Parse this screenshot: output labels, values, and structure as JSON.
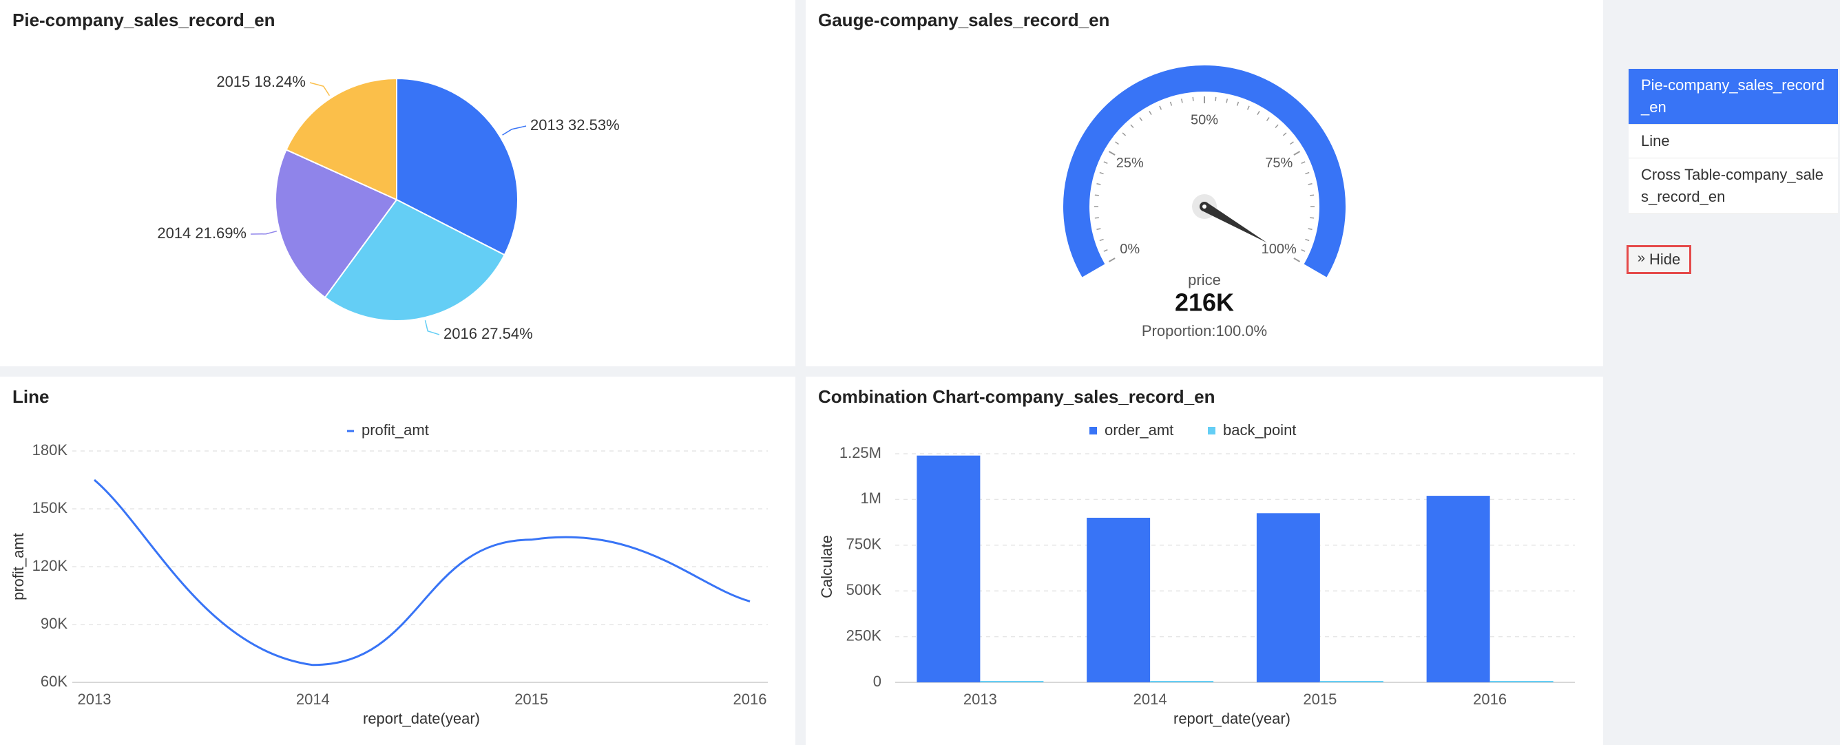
{
  "colors": {
    "pie": [
      "#3874f6",
      "#64cef5",
      "#8f84ea",
      "#fbbf4a"
    ],
    "primary": "#3874f6",
    "secondary": "#64cef5",
    "nav_active_bg": "#3874f6",
    "hide_border": "#e54a4a"
  },
  "panels": {
    "pie_title": "Pie-company_sales_record_en",
    "gauge_title": "Gauge-company_sales_record_en",
    "line_title": "Line",
    "combo_title": "Combination Chart-company_sales_record_en"
  },
  "gauge": {
    "ticks": [
      "0%",
      "25%",
      "50%",
      "75%",
      "100%"
    ],
    "label": "price",
    "value_text": "216K",
    "proportion_text": "Proportion:100.0%",
    "value_fraction": 1.0
  },
  "side_nav": {
    "items": [
      {
        "label": "Pie-company_sales_record_en",
        "active": true
      },
      {
        "label": "Line",
        "active": false
      },
      {
        "label": "Cross Table-company_sales_record_en",
        "active": false
      }
    ],
    "hide_label": "Hide",
    "hide_icon": "double-chevron-right-icon"
  },
  "chart_data": [
    {
      "type": "pie",
      "title": "Pie-company_sales_record_en",
      "slices": [
        {
          "label": "2013",
          "value": 32.53,
          "display": "2013 32.53%"
        },
        {
          "label": "2016",
          "value": 27.54,
          "display": "2016 27.54%"
        },
        {
          "label": "2014",
          "value": 21.69,
          "display": "2014 21.69%"
        },
        {
          "label": "2015",
          "value": 18.24,
          "display": "2015 18.24%"
        }
      ]
    },
    {
      "type": "line",
      "title": "Line",
      "x": [
        "2013",
        "2014",
        "2015",
        "2016"
      ],
      "series": [
        {
          "name": "profit_amt",
          "values": [
            165000,
            69000,
            134000,
            102000
          ]
        }
      ],
      "xlabel": "report_date(year)",
      "ylabel": "profit_amt",
      "ylim": [
        60000,
        180000
      ],
      "yticks": [
        60000,
        90000,
        120000,
        150000,
        180000
      ],
      "ytick_labels": [
        "60K",
        "90K",
        "120K",
        "150K",
        "180K"
      ],
      "grid": true,
      "legend": "top-center"
    },
    {
      "type": "bar",
      "title": "Combination Chart-company_sales_record_en",
      "categories": [
        "2013",
        "2014",
        "2015",
        "2016"
      ],
      "series": [
        {
          "name": "order_amt",
          "values": [
            1240000,
            900000,
            925000,
            1020000
          ]
        },
        {
          "name": "back_point",
          "values": [
            5000,
            4000,
            4000,
            5000
          ]
        }
      ],
      "xlabel": "report_date(year)",
      "ylabel": "Calculate",
      "ylim": [
        0,
        1250000
      ],
      "yticks": [
        0,
        250000,
        500000,
        750000,
        1000000,
        1250000
      ],
      "ytick_labels": [
        "0",
        "250K",
        "500K",
        "750K",
        "1M",
        "1.25M"
      ],
      "grid": true,
      "legend": "top-center"
    }
  ]
}
